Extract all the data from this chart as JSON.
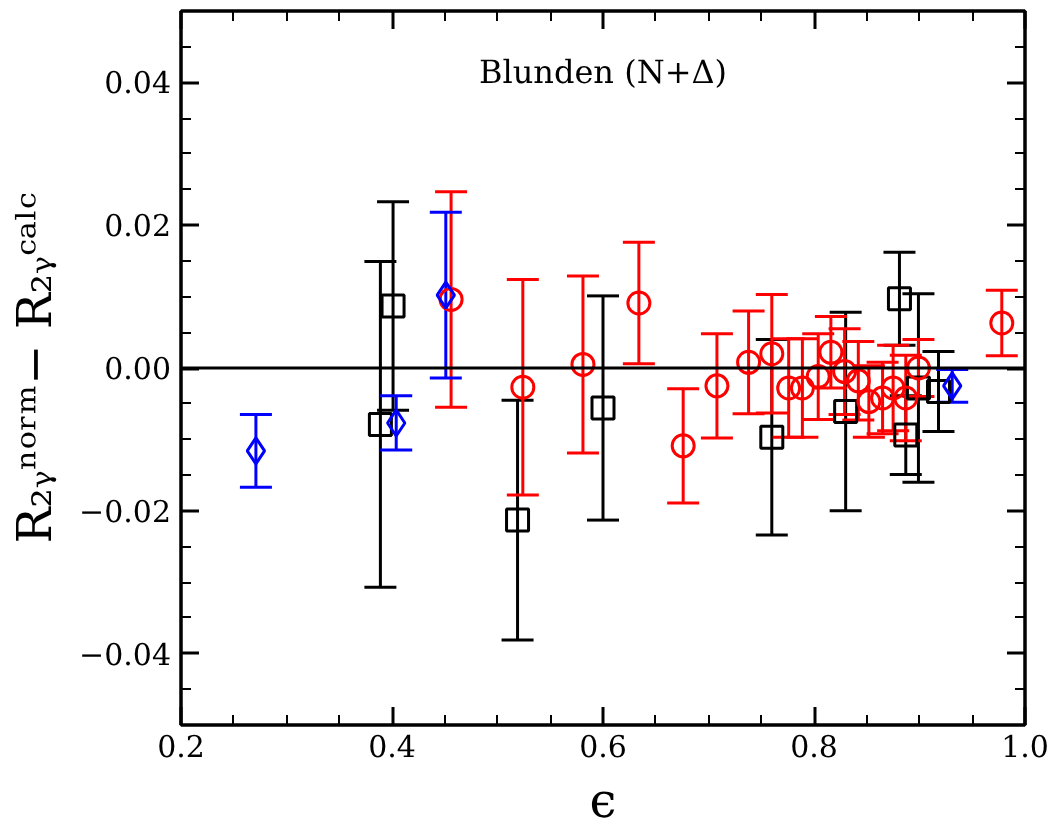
{
  "chart_data": {
    "type": "scatter",
    "xlabel": "ϵ",
    "ylabel": "R₂ᵧⁿᵒʳᵐ− R₂ᵧᶜᵃˡᶜ",
    "annotations": [
      "Blunden (N+Δ)"
    ],
    "xlim": [
      0.2,
      1.0
    ],
    "xticks": [
      0.2,
      0.4,
      0.6,
      0.8,
      {
        "value": 1.0,
        "label": "1.0"
      }
    ],
    "ylim": [
      -0.05,
      0.05
    ],
    "yticks": [
      {
        "value": -0.04,
        "label": "−0.04"
      },
      {
        "value": -0.02,
        "label": "−0.02"
      },
      {
        "value": 0,
        "label": "0.00"
      },
      0.02,
      0.04
    ],
    "ref_lines": [
      {
        "axis": "y",
        "value": 0,
        "color": "#000000"
      }
    ],
    "series": [
      {
        "color": "#000000",
        "marker": "square",
        "x": [
          0.389,
          0.401,
          0.519,
          0.6,
          0.76,
          0.83,
          0.881,
          0.887,
          0.899,
          0.918
        ],
        "values": [
          -0.0079,
          0.0087,
          -0.0213,
          -0.0056,
          -0.0097,
          -0.0061,
          0.0097,
          -0.0094,
          -0.0028,
          -0.0033
        ],
        "errors": [
          0.0228,
          0.0146,
          0.0168,
          0.0157,
          0.0137,
          0.0139,
          0.0065,
          0.0055,
          0.0132,
          0.0056
        ]
      },
      {
        "color": "#ff0000",
        "marker": "circle",
        "x": [
          0.456,
          0.524,
          0.581,
          0.634,
          0.676,
          0.708,
          0.738,
          0.76,
          0.776,
          0.789,
          0.804,
          0.816,
          0.829,
          0.842,
          0.852,
          0.865,
          0.875,
          0.887,
          0.899,
          0.978
        ],
        "values": [
          0.0096,
          -0.0027,
          0.0005,
          0.0091,
          -0.0109,
          -0.0025,
          0.0008,
          0.002,
          -0.0028,
          -0.0028,
          -0.0012,
          0.0022,
          -0.0005,
          -0.0018,
          -0.0047,
          -0.0042,
          -0.0028,
          -0.0042,
          0.0,
          0.0063
        ],
        "errors": [
          0.0151,
          0.0151,
          0.0124,
          0.0085,
          0.008,
          0.0073,
          0.0072,
          0.0083,
          0.0069,
          0.0069,
          0.006,
          0.005,
          0.006,
          0.0055,
          0.005,
          0.005,
          0.006,
          0.006,
          0.004,
          0.0046
        ]
      },
      {
        "color": "#0000ff",
        "marker": "diamond",
        "x": [
          0.271,
          0.404,
          0.451,
          0.931
        ],
        "values": [
          -0.0116,
          -0.0077,
          0.0102,
          -0.0025
        ],
        "errors": [
          0.0051,
          0.0038,
          0.0116,
          0.0023
        ]
      }
    ]
  }
}
